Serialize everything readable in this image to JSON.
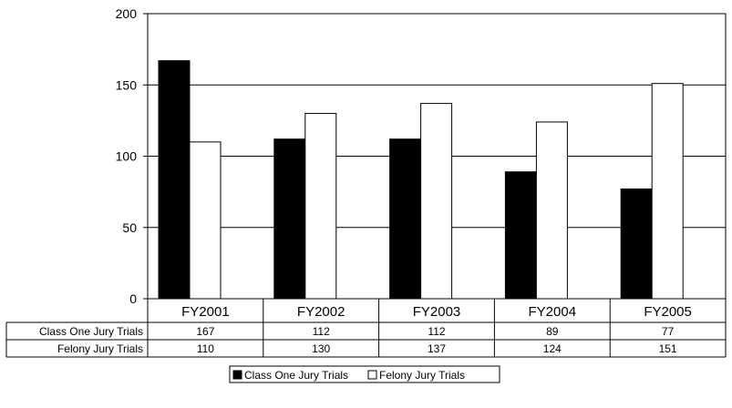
{
  "chart_data": {
    "type": "bar",
    "categories": [
      "FY2001",
      "FY2002",
      "FY2003",
      "FY2004",
      "FY2005"
    ],
    "series": [
      {
        "name": "Class One Jury Trials",
        "values": [
          167,
          112,
          112,
          89,
          77
        ],
        "color": "#000000"
      },
      {
        "name": "Felony Jury Trials",
        "values": [
          110,
          130,
          137,
          124,
          151
        ],
        "color": "#ffffff"
      }
    ],
    "title": "",
    "xlabel": "",
    "ylabel": "",
    "ylim": [
      0,
      200
    ],
    "yticks": [
      "0",
      "50",
      "100",
      "150",
      "200"
    ],
    "grid": true,
    "legend": "bottom",
    "data_table": {
      "rows": [
        {
          "label": "Class One Jury Trials",
          "values": [
            "167",
            "112",
            "112",
            "89",
            "77"
          ]
        },
        {
          "label": "Felony Jury Trials",
          "values": [
            "110",
            "130",
            "137",
            "124",
            "151"
          ]
        }
      ]
    }
  }
}
